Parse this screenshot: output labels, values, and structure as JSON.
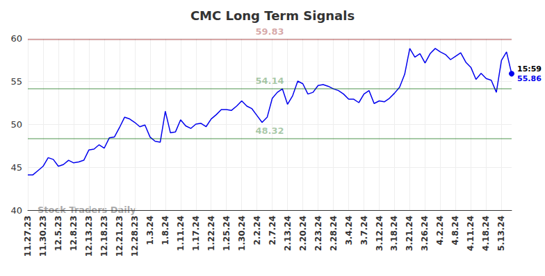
{
  "chart_data": {
    "type": "line",
    "title": "CMC Long Term Signals",
    "categories": [
      "11.27.23",
      null,
      null,
      "11.30.23",
      null,
      null,
      "12.5.23",
      null,
      null,
      "12.8.23",
      null,
      null,
      "12.13.23",
      null,
      null,
      "12.18.23",
      null,
      null,
      "12.21.23",
      null,
      null,
      "12.28.23",
      null,
      null,
      "1.3.24",
      null,
      null,
      "1.8.24",
      null,
      null,
      "1.11.24",
      null,
      null,
      "1.17.24",
      null,
      null,
      "1.22.24",
      null,
      null,
      "1.25.24",
      null,
      null,
      "1.30.24",
      null,
      null,
      "2.2.24",
      null,
      null,
      "2.7.24",
      null,
      null,
      "2.13.24",
      null,
      null,
      "2.20.24",
      null,
      null,
      "2.23.24",
      null,
      null,
      "2.28.24",
      null,
      null,
      "3.4.24",
      null,
      null,
      "3.7.24",
      null,
      null,
      "3.12.24",
      null,
      null,
      "3.18.24",
      null,
      null,
      "3.21.24",
      null,
      null,
      "3.26.24",
      null,
      null,
      "4.2.24",
      null,
      null,
      "4.8.24",
      null,
      null,
      "4.11.24",
      null,
      null,
      "4.18.24",
      null,
      null,
      "5.13.24",
      null,
      null
    ],
    "values": [
      44.1,
      44.1,
      44.6,
      45.1,
      46.1,
      45.9,
      45.1,
      45.3,
      45.8,
      45.5,
      45.6,
      45.8,
      47.0,
      47.1,
      47.6,
      47.2,
      48.4,
      48.5,
      49.6,
      50.8,
      50.6,
      50.2,
      49.7,
      49.9,
      48.5,
      48.0,
      47.9,
      51.5,
      49.0,
      49.1,
      50.5,
      49.8,
      49.5,
      50.0,
      50.1,
      49.7,
      50.6,
      51.1,
      51.7,
      51.7,
      51.6,
      52.1,
      52.7,
      52.1,
      51.8,
      51.0,
      50.2,
      50.8,
      53.0,
      53.7,
      54.1,
      52.3,
      53.3,
      55.0,
      54.7,
      53.5,
      53.7,
      54.5,
      54.6,
      54.4,
      54.1,
      53.9,
      53.5,
      52.9,
      52.9,
      52.5,
      53.5,
      53.9,
      52.4,
      52.7,
      52.6,
      53.0,
      53.6,
      54.3,
      55.8,
      58.8,
      57.8,
      58.2,
      57.1,
      58.2,
      58.8,
      58.4,
      58.1,
      57.5,
      57.9,
      58.3,
      57.2,
      56.6,
      55.2,
      55.9,
      55.3,
      55.1,
      53.7,
      57.4,
      58.4,
      55.86
    ],
    "color": "#0000ee",
    "ylim": [
      40,
      60
    ],
    "yticks": [
      40,
      45,
      50,
      55,
      60
    ],
    "grid": true,
    "annotations": [
      {
        "value": 59.83,
        "label": "59.83",
        "color": "#8b0000"
      },
      {
        "value": 54.14,
        "label": "54.14",
        "color": "#006400"
      },
      {
        "value": 48.32,
        "label": "48.32",
        "color": "#006400"
      }
    ],
    "end_label": {
      "time": "15:59",
      "value": 55.86
    },
    "watermark": "Stock Traders Daily"
  }
}
